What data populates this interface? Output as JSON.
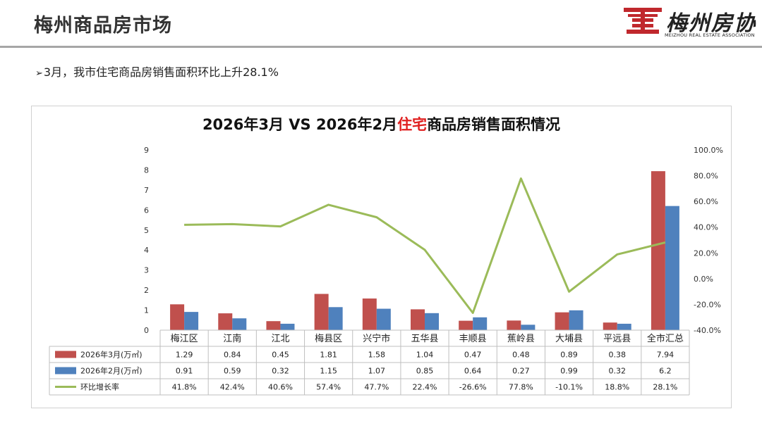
{
  "header": {
    "title": "梅州商品房市场",
    "logo_mark": "昆",
    "logo_text": "梅州房协",
    "logo_sub": "MEIZHOU REAL ESTATE ASSOCIATION"
  },
  "bullet": {
    "arrow": "➢",
    "text": "3月，我市住宅商品房销售面积环比上升28.1%"
  },
  "chart_title": {
    "prefix": "2026年3月 VS 2026年2月",
    "highlight": "住宅",
    "suffix": "商品房销售面积情况"
  },
  "colors": {
    "march": "#c0504d",
    "feb": "#4f81bd",
    "growth": "#9bbb59",
    "highlight": "#e02020"
  },
  "chart_data": {
    "type": "bar",
    "categories": [
      "梅江区",
      "江南",
      "江北",
      "梅县区",
      "兴宁市",
      "五华县",
      "丰顺县",
      "蕉岭县",
      "大埔县",
      "平远县",
      "全市汇总"
    ],
    "series": [
      {
        "name": "2026年3月(万㎡)",
        "type": "bar",
        "axis": "left",
        "values": [
          1.29,
          0.84,
          0.45,
          1.81,
          1.58,
          1.04,
          0.47,
          0.48,
          0.89,
          0.38,
          7.94
        ],
        "labels": [
          "1.29",
          "0.84",
          "0.45",
          "1.81",
          "1.58",
          "1.04",
          "0.47",
          "0.48",
          "0.89",
          "0.38",
          "7.94"
        ]
      },
      {
        "name": "2026年2月(万㎡)",
        "type": "bar",
        "axis": "left",
        "values": [
          0.91,
          0.59,
          0.32,
          1.15,
          1.07,
          0.85,
          0.64,
          0.27,
          0.99,
          0.32,
          6.2
        ],
        "labels": [
          "0.91",
          "0.59",
          "0.32",
          "1.15",
          "1.07",
          "0.85",
          "0.64",
          "0.27",
          "0.99",
          "0.32",
          "6.2"
        ]
      },
      {
        "name": "环比增长率",
        "type": "line",
        "axis": "right",
        "values": [
          41.8,
          42.4,
          40.6,
          57.4,
          47.7,
          22.4,
          -26.6,
          77.8,
          -10.1,
          18.8,
          28.1
        ],
        "labels": [
          "41.8%",
          "42.4%",
          "40.6%",
          "57.4%",
          "47.7%",
          "22.4%",
          "-26.6%",
          "77.8%",
          "-10.1%",
          "18.8%",
          "28.1%"
        ]
      }
    ],
    "ylim": [
      0,
      9
    ],
    "yticks": [
      "0",
      "1",
      "2",
      "3",
      "4",
      "5",
      "6",
      "7",
      "8",
      "9"
    ],
    "y2lim": [
      -40,
      100
    ],
    "y2ticks": [
      "-40.0%",
      "-20.0%",
      "0.0%",
      "20.0%",
      "40.0%",
      "60.0%",
      "80.0%",
      "100.0%"
    ],
    "legend": "data-table-below",
    "grid": false
  }
}
